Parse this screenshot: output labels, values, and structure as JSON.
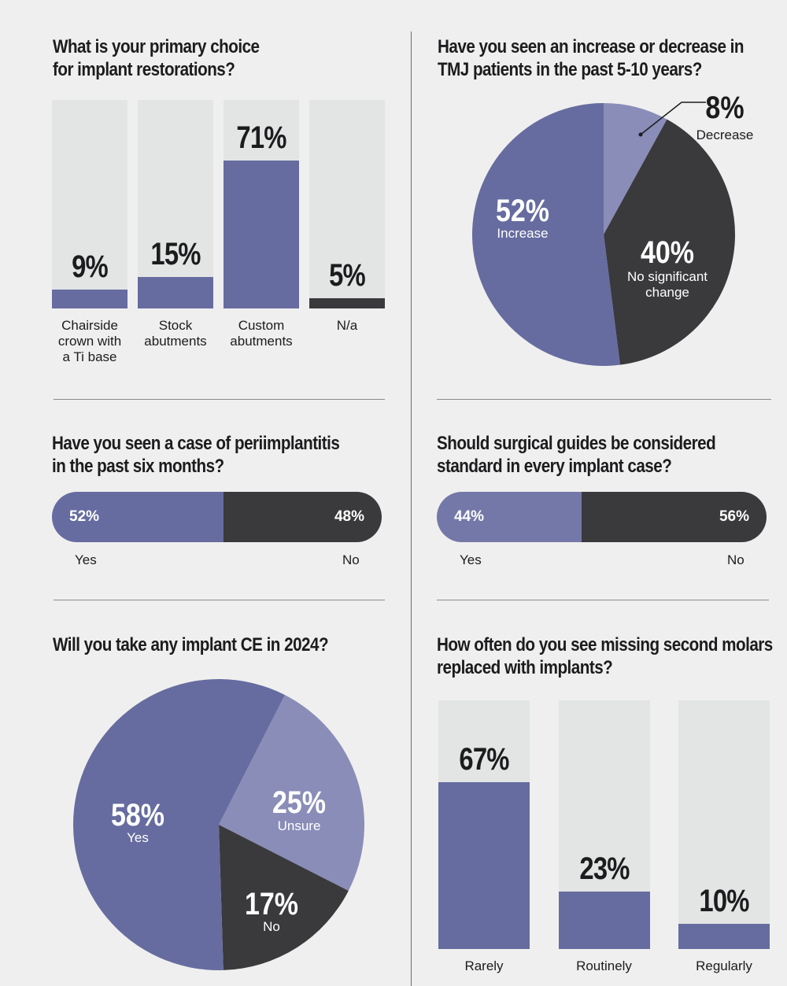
{
  "colors": {
    "purple": "#666c9f",
    "light_purple": "#8a8db8",
    "dark": "#3a3a3d",
    "track": "#e2e5e4",
    "background": "#efefef"
  },
  "chart_data": [
    {
      "id": "implant_restorations",
      "type": "bar",
      "title": [
        "What is your primary choice",
        "for implant restorations?"
      ],
      "categories": [
        [
          "Chairside",
          "crown with",
          "a Ti base"
        ],
        [
          "Stock",
          "abutments"
        ],
        [
          "Custom",
          "abutments"
        ],
        [
          "N/a"
        ]
      ],
      "values": [
        9,
        15,
        71,
        5
      ],
      "value_labels": [
        "9%",
        "15%",
        "71%",
        "5%"
      ],
      "fill_colors": [
        "#666c9f",
        "#666c9f",
        "#666c9f",
        "#3a3a3d"
      ],
      "ylim": [
        0,
        100
      ]
    },
    {
      "id": "tmj_patients",
      "type": "pie",
      "title": [
        "Have you seen an increase or decrease in",
        "TMJ patients in the past 5-10 years?"
      ],
      "slices": [
        {
          "label": "Decrease",
          "value": 8,
          "pct": "8%",
          "color": "#8a8db8"
        },
        {
          "label": "No significant change",
          "label_lines": [
            "No significant",
            "change"
          ],
          "value": 40,
          "pct": "40%",
          "color": "#3a3a3d"
        },
        {
          "label": "Increase",
          "value": 52,
          "pct": "52%",
          "color": "#666c9f"
        }
      ]
    },
    {
      "id": "periimplantitis",
      "type": "bar",
      "orientation": "horizontal-stacked",
      "title": [
        "Have you seen a case of periimplantitis",
        "in the past six months?"
      ],
      "segments": [
        {
          "label": "Yes",
          "value": 52,
          "pct": "52%",
          "color": "#666c9f"
        },
        {
          "label": "No",
          "value": 48,
          "pct": "48%",
          "color": "#3a3a3d"
        }
      ]
    },
    {
      "id": "surgical_guides",
      "type": "bar",
      "orientation": "horizontal-stacked",
      "title": [
        "Should surgical guides be considered",
        "standard in every implant case?"
      ],
      "segments": [
        {
          "label": "Yes",
          "value": 44,
          "pct": "44%",
          "color": "#7478a8"
        },
        {
          "label": "No",
          "value": 56,
          "pct": "56%",
          "color": "#3a3a3d"
        }
      ]
    },
    {
      "id": "implant_ce",
      "type": "pie",
      "title": [
        "Will you take any implant CE in 2024?"
      ],
      "slices": [
        {
          "label": "Unsure",
          "value": 25,
          "pct": "25%",
          "color": "#8a8db8"
        },
        {
          "label": "No",
          "value": 17,
          "pct": "17%",
          "color": "#3a3a3d"
        },
        {
          "label": "Yes",
          "value": 58,
          "pct": "58%",
          "color": "#666c9f"
        }
      ]
    },
    {
      "id": "second_molars",
      "type": "bar",
      "title": [
        "How often do you see missing second molars",
        "replaced with implants?"
      ],
      "categories": [
        [
          "Rarely"
        ],
        [
          "Routinely"
        ],
        [
          "Regularly"
        ]
      ],
      "values": [
        67,
        23,
        10
      ],
      "value_labels": [
        "67%",
        "23%",
        "10%"
      ],
      "fill_colors": [
        "#666c9f",
        "#666c9f",
        "#666c9f"
      ],
      "ylim": [
        0,
        100
      ]
    }
  ]
}
